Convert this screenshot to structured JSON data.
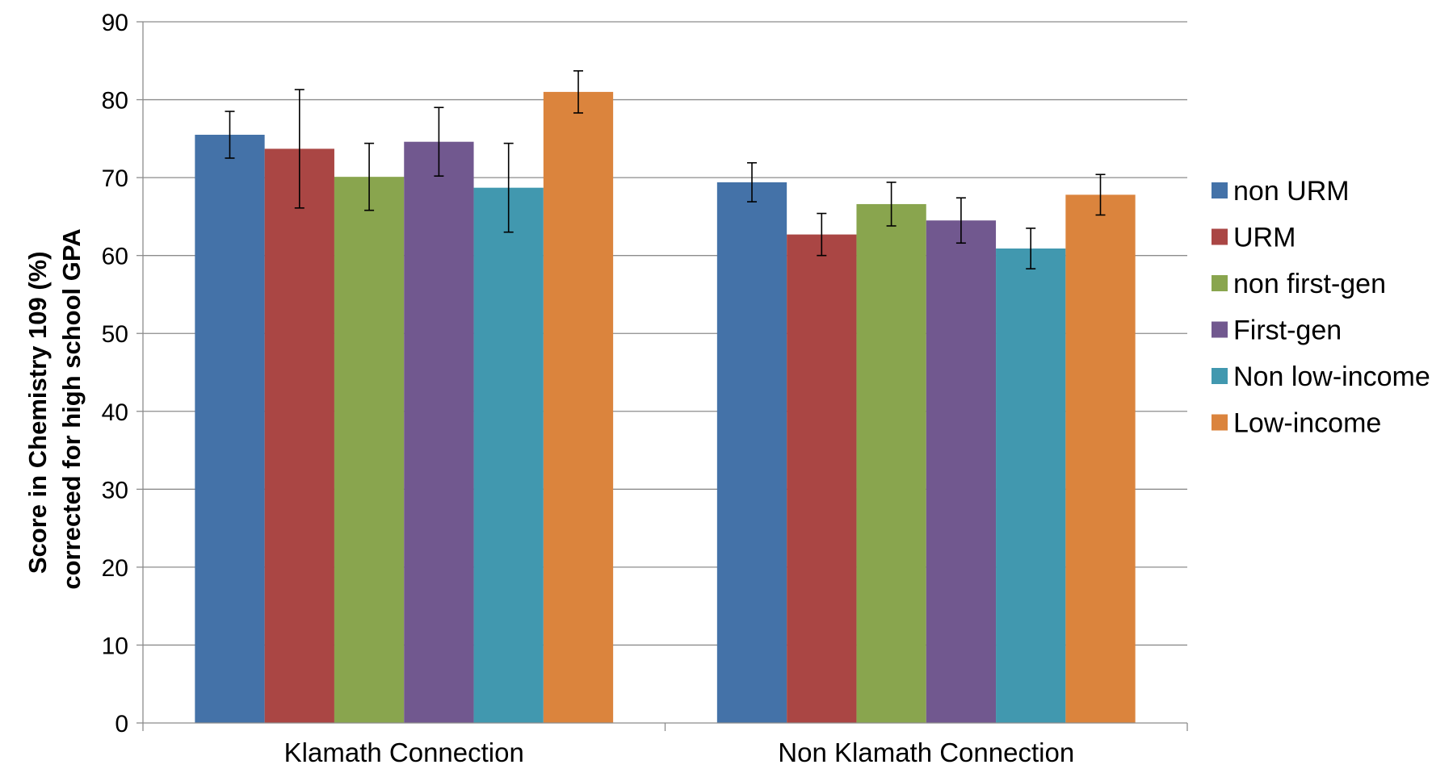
{
  "chart_data": {
    "type": "bar",
    "title": "",
    "xlabel": "",
    "ylabel_lines": [
      "Score in Chemistry 109  (%)",
      "corrected for high school GPA"
    ],
    "ylim": [
      0,
      90
    ],
    "yticks": [
      0,
      10,
      20,
      30,
      40,
      50,
      60,
      70,
      80,
      90
    ],
    "grid": true,
    "legend_position": "right",
    "categories": [
      "Klamath Connection",
      "Non Klamath Connection"
    ],
    "series": [
      {
        "name": "non URM",
        "color": "#4472a8",
        "values": [
          75.5,
          69.4
        ],
        "errors": [
          3.0,
          2.5
        ]
      },
      {
        "name": "URM",
        "color": "#aa4644",
        "values": [
          73.7,
          62.7
        ],
        "errors": [
          7.6,
          2.7
        ]
      },
      {
        "name": "non first-gen",
        "color": "#89a54e",
        "values": [
          70.1,
          66.6
        ],
        "errors": [
          4.3,
          2.8
        ]
      },
      {
        "name": "First-gen",
        "color": "#71588f",
        "values": [
          74.6,
          64.5
        ],
        "errors": [
          4.4,
          2.9
        ]
      },
      {
        "name": "Non low-income",
        "color": "#4198af",
        "values": [
          68.7,
          60.9
        ],
        "errors": [
          5.7,
          2.6
        ]
      },
      {
        "name": "Low-income",
        "color": "#db843d",
        "values": [
          81.0,
          67.8
        ],
        "errors": [
          2.7,
          2.6
        ]
      }
    ]
  }
}
